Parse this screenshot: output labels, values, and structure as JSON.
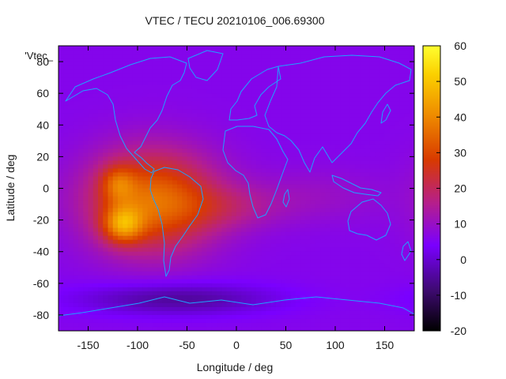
{
  "chart_data": {
    "type": "heatmap",
    "title": "VTEC / TECU 20210106_006.69300",
    "xlabel": "Longitude / deg",
    "ylabel": "Latitude / deg",
    "legend_key": "'Vtec_",
    "xlim": [
      -180,
      180
    ],
    "ylim": [
      -90,
      90
    ],
    "x_ticks": [
      -150,
      -100,
      -50,
      0,
      50,
      100,
      150
    ],
    "y_ticks": [
      -80,
      -60,
      -40,
      -20,
      0,
      20,
      40,
      60,
      80
    ],
    "x_tick_labels": [
      "-150",
      "-100",
      "-50",
      "0",
      "50",
      "100",
      "150"
    ],
    "y_tick_labels": [
      "-80",
      "-60",
      "-40",
      "-20",
      "0",
      "20",
      "40",
      "60",
      "80"
    ],
    "colorbar": {
      "range": [
        -20,
        60
      ],
      "ticks": [
        -20,
        -10,
        0,
        10,
        20,
        30,
        40,
        50,
        60
      ],
      "tick_labels": [
        "-20",
        "-10",
        "0",
        "10",
        "20",
        "30",
        "40",
        "50",
        "60"
      ],
      "palette": [
        "#000000",
        "#3d0a6e",
        "#7a00ff",
        "#b61f8a",
        "#d83a00",
        "#ee8800",
        "#fbd000",
        "#ffff30"
      ]
    },
    "background_tec": 6,
    "features": [
      {
        "name": "main-anomaly",
        "lon": -85,
        "lat": -8,
        "peak": 30,
        "sigma_lon": 45,
        "sigma_lat": 22
      },
      {
        "name": "peak-south",
        "lon": -115,
        "lat": -23,
        "peak": 24,
        "sigma_lon": 14,
        "sigma_lat": 8
      },
      {
        "name": "peak-north",
        "lon": -120,
        "lat": 3,
        "peak": 14,
        "sigma_lon": 12,
        "sigma_lat": 8
      },
      {
        "name": "atlantic-band",
        "lon": -10,
        "lat": -12,
        "peak": 7,
        "sigma_lon": 40,
        "sigma_lat": 10
      },
      {
        "name": "indian-band",
        "lon": 80,
        "lat": -5,
        "peak": 4,
        "sigma_lon": 50,
        "sigma_lat": 12
      },
      {
        "name": "polar-depletion",
        "lon": -60,
        "lat": -70,
        "peak": -11,
        "sigma_lon": 70,
        "sigma_lat": 7
      }
    ],
    "coastline_color": "#1fa2ff"
  }
}
